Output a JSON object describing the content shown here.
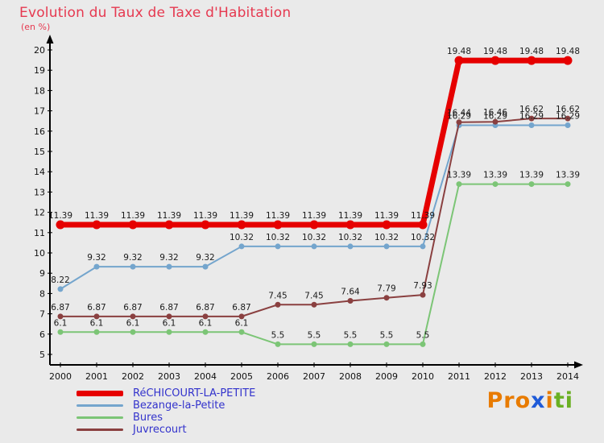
{
  "title": "Evolution du Taux de Taxe d'Habitation",
  "subtitle": "(en %)",
  "colors": {
    "background": "#eaeaea",
    "title": "#e63950",
    "axis": "#000000",
    "point_label": "#1a1a1a",
    "tick_label": "#111111",
    "legend_text": "#3333cc"
  },
  "chart_data": {
    "type": "line",
    "title": "Evolution du Taux de Taxe d'Habitation",
    "subtitle": "(en %)",
    "x": [
      2000,
      2001,
      2002,
      2003,
      2004,
      2005,
      2006,
      2007,
      2008,
      2009,
      2010,
      2011,
      2012,
      2013,
      2014
    ],
    "ylim": [
      5,
      20
    ],
    "ytick_step": 1,
    "grid": false,
    "legend_position": "bottom-left",
    "point_labels": true,
    "series": [
      {
        "name": "RéCHICOURT-LA-PETITE",
        "color": "#e60000",
        "width": 7,
        "marker": 5.5,
        "values": [
          11.39,
          11.39,
          11.39,
          11.39,
          11.39,
          11.39,
          11.39,
          11.39,
          11.39,
          11.39,
          11.39,
          19.48,
          19.48,
          19.48,
          19.48
        ]
      },
      {
        "name": "Bezange-la-Petite",
        "color": "#74a5cd",
        "width": 2,
        "marker": 3.5,
        "values": [
          8.22,
          9.32,
          9.32,
          9.32,
          9.32,
          10.32,
          10.32,
          10.32,
          10.32,
          10.32,
          10.32,
          16.29,
          16.29,
          16.29,
          16.29
        ]
      },
      {
        "name": "Bures",
        "color": "#7cc576",
        "width": 2,
        "marker": 3.5,
        "values": [
          6.1,
          6.1,
          6.1,
          6.1,
          6.1,
          6.1,
          5.5,
          5.5,
          5.5,
          5.5,
          5.5,
          13.39,
          13.39,
          13.39,
          13.39
        ]
      },
      {
        "name": "Juvrecourt",
        "color": "#8a4040",
        "width": 2,
        "marker": 3.5,
        "values": [
          6.87,
          6.87,
          6.87,
          6.87,
          6.87,
          6.87,
          7.45,
          7.45,
          7.64,
          7.79,
          7.93,
          16.44,
          16.46,
          16.62,
          16.62
        ]
      }
    ]
  },
  "logo": {
    "text": "Proxiti",
    "letters": [
      {
        "ch": "P",
        "color": "#e87b00"
      },
      {
        "ch": "r",
        "color": "#e87b00"
      },
      {
        "ch": "o",
        "color": "#e87b00"
      },
      {
        "ch": "x",
        "color": "#1f5bd8"
      },
      {
        "ch": "i",
        "color": "#e87b00"
      },
      {
        "ch": "t",
        "color": "#6ab023"
      },
      {
        "ch": "i",
        "color": "#6ab023"
      }
    ]
  }
}
